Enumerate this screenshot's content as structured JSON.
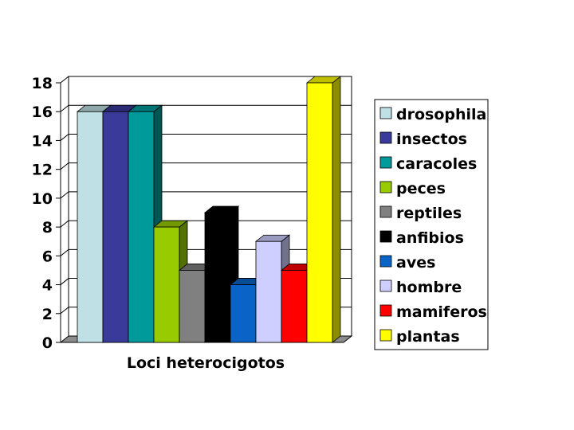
{
  "chart_data": {
    "type": "bar",
    "categories": [
      "Loci heterocigotos"
    ],
    "xlabel": "Loci heterocigotos",
    "ylabel": "",
    "ylim": [
      0,
      18
    ],
    "yticks": [
      "0",
      "2",
      "4",
      "6",
      "8",
      "10",
      "12",
      "14",
      "16",
      "18"
    ],
    "grid": true,
    "legend_position": "right",
    "three_d": true,
    "series": [
      {
        "name": "drosophila",
        "values": [
          16
        ],
        "color": "#bfe0e4"
      },
      {
        "name": "insectos",
        "values": [
          16
        ],
        "color": "#3a3a9a"
      },
      {
        "name": "caracoles",
        "values": [
          16
        ],
        "color": "#009a9a"
      },
      {
        "name": "peces",
        "values": [
          8
        ],
        "color": "#99cc00"
      },
      {
        "name": "reptiles",
        "values": [
          5
        ],
        "color": "#808080"
      },
      {
        "name": "anfibios",
        "values": [
          9
        ],
        "color": "#000000"
      },
      {
        "name": "aves",
        "values": [
          4
        ],
        "color": "#0a64c8"
      },
      {
        "name": "hombre",
        "values": [
          7
        ],
        "color": "#cfcfff"
      },
      {
        "name": "mamiferos",
        "values": [
          5
        ],
        "color": "#ff0000"
      },
      {
        "name": "plantas",
        "values": [
          18
        ],
        "color": "#ffff00"
      }
    ]
  }
}
